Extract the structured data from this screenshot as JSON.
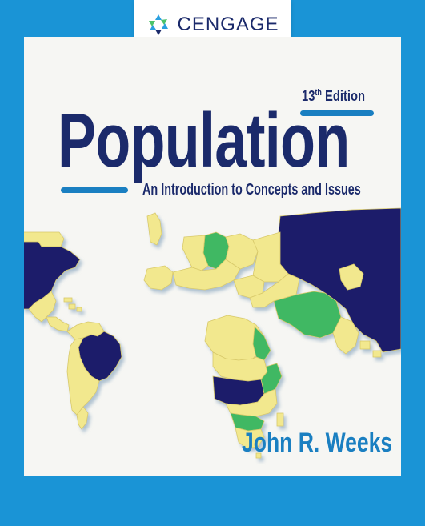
{
  "publisher": {
    "name": "CENGAGE",
    "logo_icon": "cengage-logo-icon"
  },
  "book": {
    "edition": "13",
    "edition_suffix": "th",
    "edition_word": " Edition",
    "title": "Population",
    "subtitle": "An Introduction to Concepts and Issues",
    "author": "John R. Weeks"
  },
  "colors": {
    "background": "#1a94d6",
    "navy": "#1b2a6b",
    "accent": "#1a7fc1",
    "map_yellow": "#f2e88e",
    "map_green": "#3fb863",
    "map_navy": "#1e1f6b"
  }
}
